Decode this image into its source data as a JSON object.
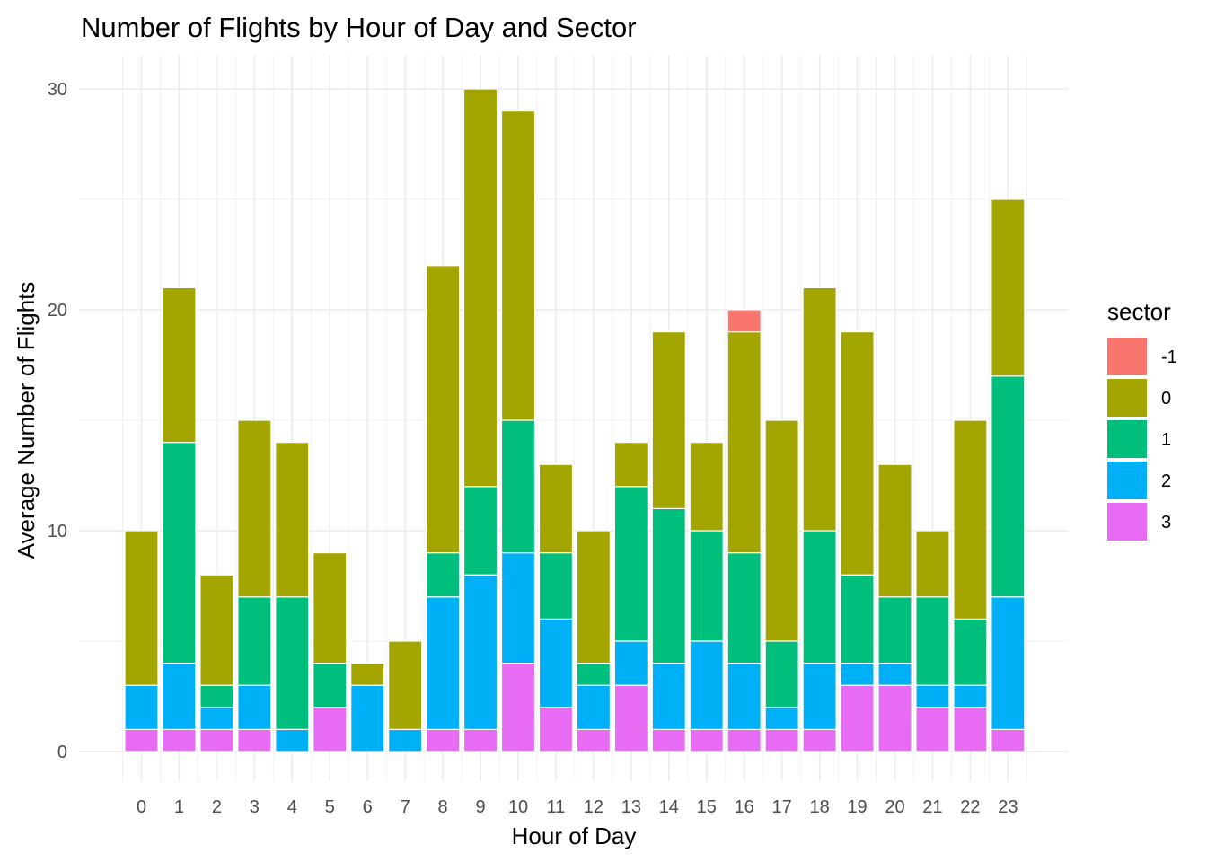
{
  "chart_data": {
    "type": "bar",
    "stacked": true,
    "title": "Number of Flights by Hour of Day and Sector",
    "xlabel": "Hour of Day",
    "ylabel": "Average Number of Flights",
    "categories": [
      "0",
      "1",
      "2",
      "3",
      "4",
      "5",
      "6",
      "7",
      "8",
      "9",
      "10",
      "11",
      "12",
      "13",
      "14",
      "15",
      "16",
      "17",
      "18",
      "19",
      "20",
      "21",
      "22",
      "23"
    ],
    "ylim": [
      0,
      31.5
    ],
    "yticks": [
      0,
      10,
      20,
      30
    ],
    "grid": true,
    "legend": {
      "title": "sector",
      "position": "right"
    },
    "series": [
      {
        "name": "3",
        "color": "#E76BF3",
        "values": [
          1,
          1,
          1,
          1,
          0,
          2,
          0,
          0,
          1,
          1,
          4,
          2,
          1,
          3,
          1,
          1,
          1,
          1,
          1,
          3,
          3,
          2,
          2,
          1
        ]
      },
      {
        "name": "2",
        "color": "#00B0F6",
        "values": [
          2,
          3,
          1,
          2,
          1,
          0,
          3,
          1,
          6,
          7,
          5,
          4,
          2,
          2,
          3,
          4,
          3,
          1,
          3,
          1,
          1,
          1,
          1,
          6
        ]
      },
      {
        "name": "1",
        "color": "#00BF7D",
        "values": [
          0,
          10,
          1,
          4,
          6,
          2,
          0,
          0,
          2,
          4,
          6,
          3,
          1,
          7,
          7,
          5,
          5,
          3,
          6,
          4,
          3,
          4,
          3,
          10
        ]
      },
      {
        "name": "0",
        "color": "#A3A500",
        "values": [
          7,
          7,
          5,
          8,
          7,
          5,
          1,
          4,
          13,
          18,
          14,
          4,
          6,
          2,
          8,
          4,
          10,
          10,
          11,
          11,
          6,
          3,
          9,
          8
        ]
      },
      {
        "name": "-1",
        "color": "#F8766D",
        "values": [
          0,
          0,
          0,
          0,
          0,
          0,
          0,
          0,
          0,
          0,
          0,
          0,
          0,
          0,
          0,
          0,
          1,
          0,
          0,
          0,
          0,
          0,
          0,
          0
        ]
      }
    ],
    "legend_order": [
      "-1",
      "0",
      "1",
      "2",
      "3"
    ]
  }
}
